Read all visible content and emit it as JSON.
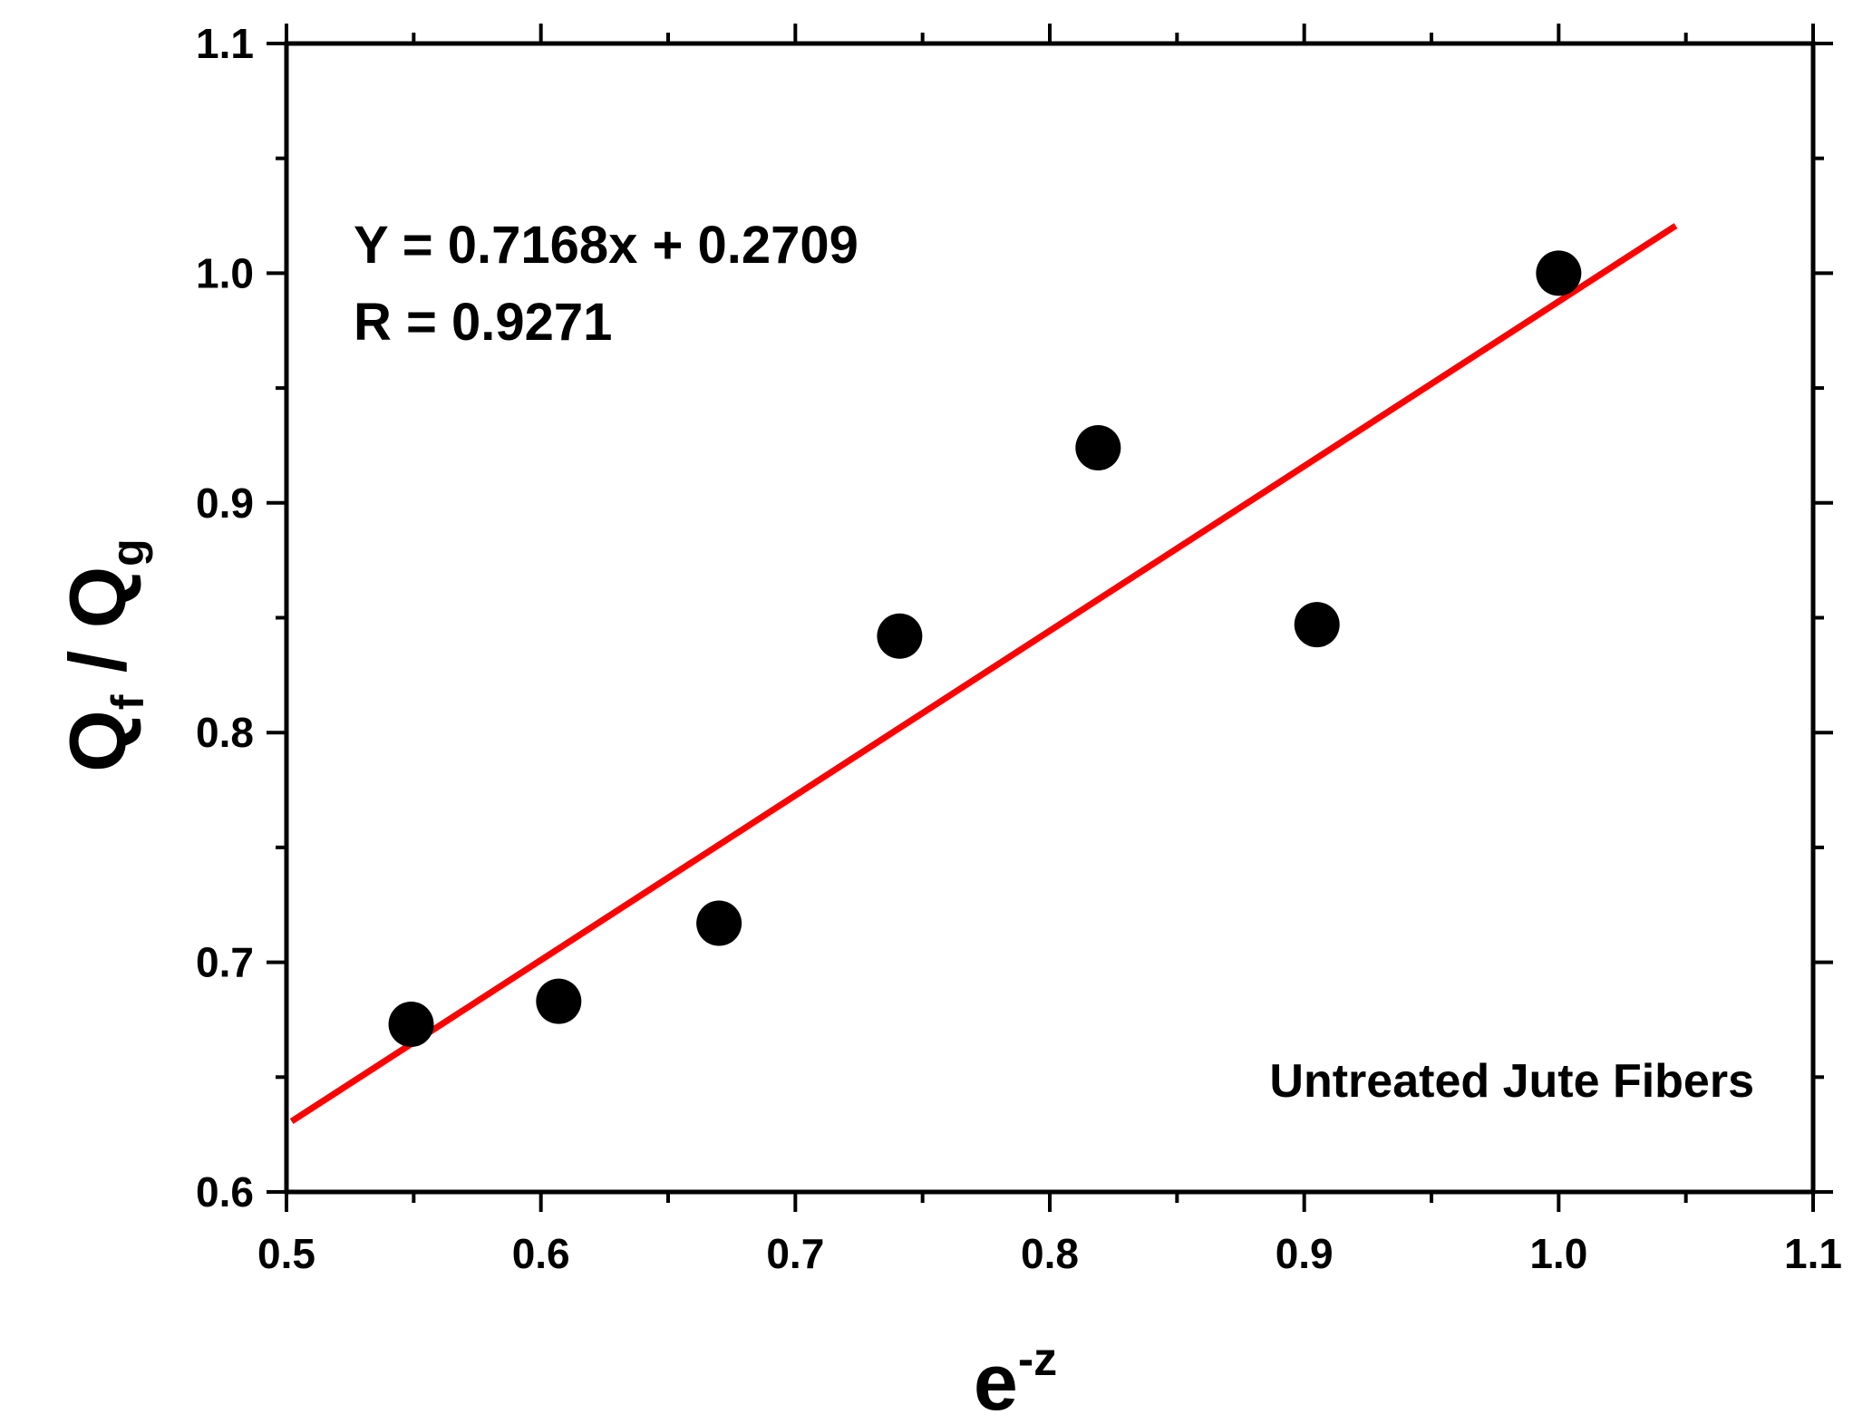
{
  "chart_data": {
    "type": "scatter",
    "title": "",
    "xlabel": {
      "base": "e",
      "sup": "-z"
    },
    "ylabel": {
      "q1": "Q",
      "sub1": "f",
      "sep": " / ",
      "q2": "Q",
      "sub2": "g"
    },
    "xlim": [
      0.5,
      1.1
    ],
    "ylim": [
      0.6,
      1.1
    ],
    "xticks": [
      "0.5",
      "0.6",
      "0.7",
      "0.8",
      "0.9",
      "1.0",
      "1.1"
    ],
    "yticks": [
      "0.6",
      "0.7",
      "0.8",
      "0.9",
      "1.0",
      "1.1"
    ],
    "grid": false,
    "points": [
      {
        "x": 0.549,
        "y": 0.673
      },
      {
        "x": 0.607,
        "y": 0.683
      },
      {
        "x": 0.67,
        "y": 0.717
      },
      {
        "x": 0.741,
        "y": 0.842
      },
      {
        "x": 0.819,
        "y": 0.924
      },
      {
        "x": 0.905,
        "y": 0.847
      },
      {
        "x": 1.0,
        "y": 1.0
      }
    ],
    "fit_line": {
      "x": [
        0.502,
        1.046
      ],
      "slope": 0.7168,
      "intercept": 0.2709
    },
    "annotations": {
      "equation": "Y = 0.7168x + 0.2709",
      "r_value": "R = 0.9271",
      "sample": "Untreated Jute Fibers"
    },
    "colors": {
      "points": "#000000",
      "fit_line": "#ff0000",
      "axes": "#000000"
    }
  }
}
